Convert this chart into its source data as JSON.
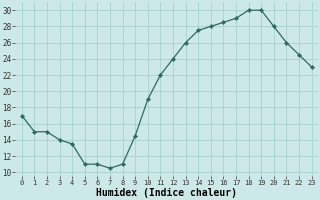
{
  "x": [
    0,
    1,
    2,
    3,
    4,
    5,
    6,
    7,
    8,
    9,
    10,
    11,
    12,
    13,
    14,
    15,
    16,
    17,
    18,
    19,
    20,
    21,
    22,
    23
  ],
  "y": [
    17,
    15,
    15,
    14,
    13.5,
    11,
    11,
    10.5,
    11,
    14.5,
    19,
    22,
    24,
    26,
    27.5,
    28,
    28.5,
    29,
    30,
    30,
    28,
    26,
    24.5,
    23
  ],
  "line_color": "#2e6b5e",
  "marker_color": "#2e6b5e",
  "bg_color": "#cde8e8",
  "grid_color": "#aacfcf",
  "xlabel": "Humidex (Indice chaleur)",
  "xlabel_fontsize": 7,
  "xtick_labels": [
    "0",
    "1",
    "2",
    "3",
    "4",
    "5",
    "6",
    "7",
    "8",
    "9",
    "10",
    "11",
    "12",
    "13",
    "14",
    "15",
    "16",
    "17",
    "18",
    "19",
    "20",
    "21",
    "22",
    "23"
  ],
  "ytick_values": [
    10,
    12,
    14,
    16,
    18,
    20,
    22,
    24,
    26,
    28,
    30
  ],
  "ylim": [
    9.5,
    31
  ],
  "xlim": [
    -0.5,
    23.5
  ]
}
